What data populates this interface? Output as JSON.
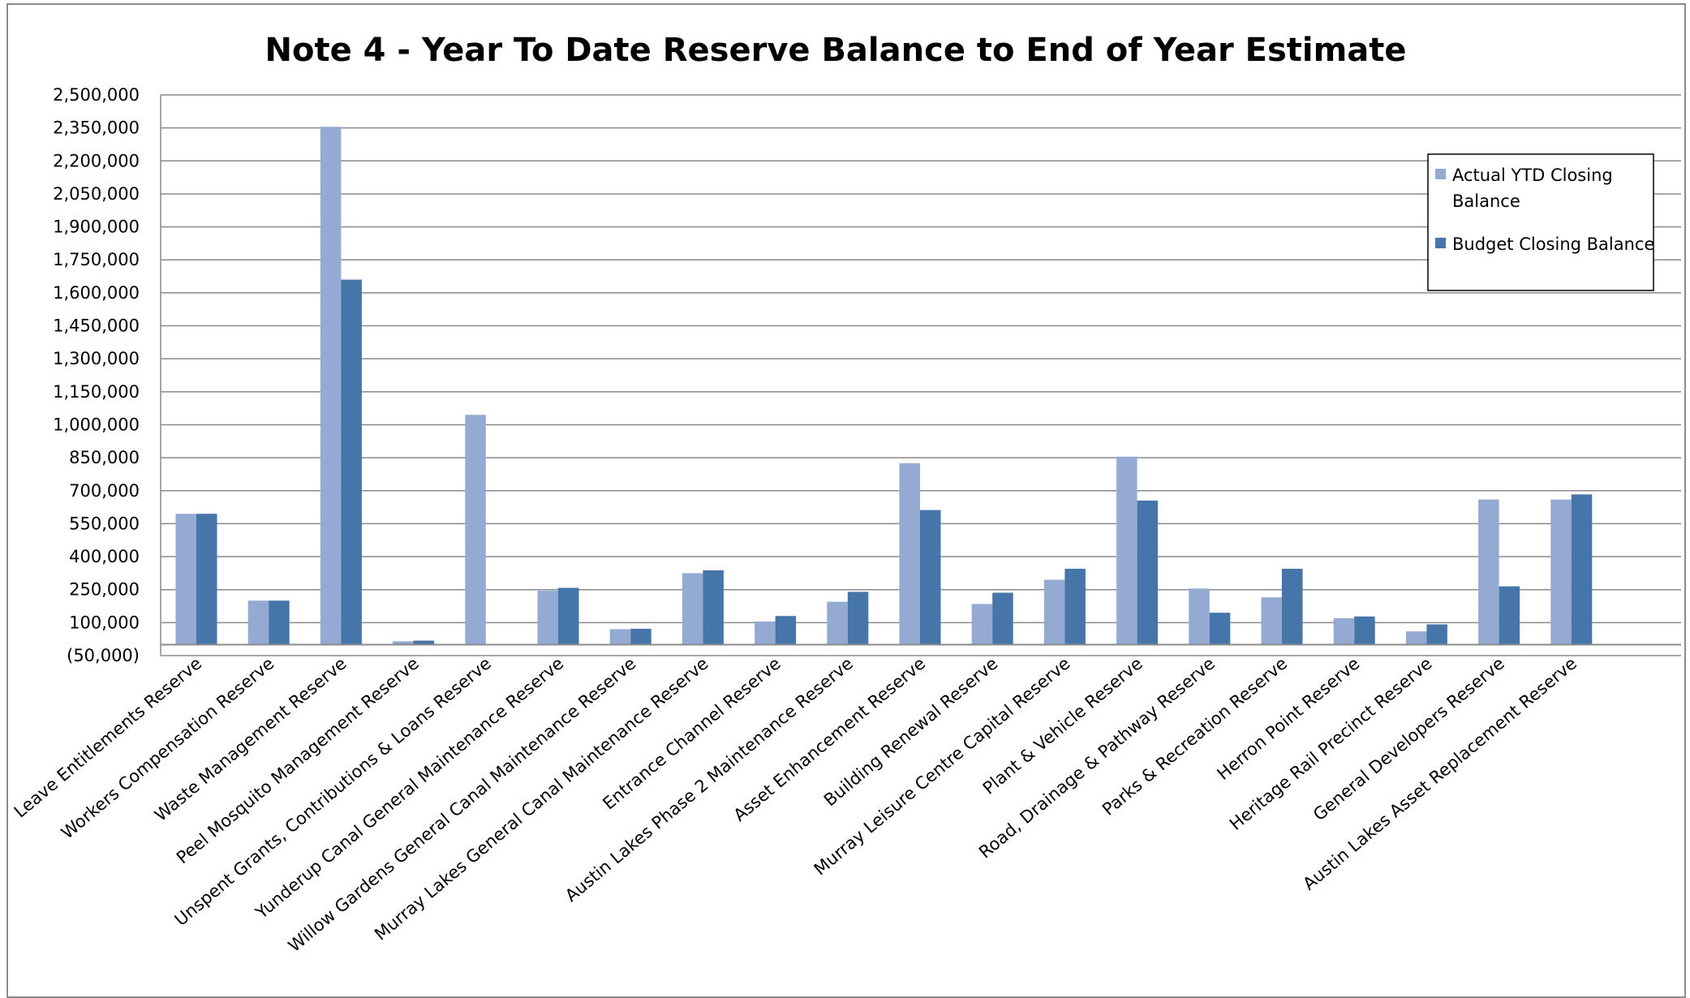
{
  "chart_data": {
    "type": "bar",
    "title": "Note 4 - Year To Date Reserve Balance to End of Year Estimate",
    "xlabel": "",
    "ylabel": "",
    "ylim": [
      -50000,
      2500000
    ],
    "y_ticks": [
      2500000,
      2350000,
      2200000,
      2050000,
      1900000,
      1750000,
      1600000,
      1450000,
      1300000,
      1150000,
      1000000,
      850000,
      700000,
      550000,
      400000,
      250000,
      100000,
      -50000
    ],
    "y_tick_labels": [
      "2,500,000",
      "2,350,000",
      "2,200,000",
      "2,050,000",
      "1,900,000",
      "1,750,000",
      "1,600,000",
      "1,450,000",
      "1,300,000",
      "1,150,000",
      "1,000,000",
      "850,000",
      "700,000",
      "550,000",
      "400,000",
      "250,000",
      "100,000",
      "(50,000)"
    ],
    "categories": [
      "Leave Entitlements Reserve",
      "Workers Compensation Reserve",
      "Waste Management Reserve",
      "Peel Mosquito Management Reserve",
      "Unspent Grants, Contributions & Loans Reserve",
      "Yunderup Canal General Maintenance Reserve",
      "Willow Gardens General Canal Maintenance Reserve",
      "Murray Lakes General Canal Maintenance Reserve",
      "Entrance Channel Reserve",
      "Austin Lakes Phase 2 Maintenance Reserve",
      "Asset Enhancement Reserve",
      "Building Renewal Reserve",
      "Murray Leisure Centre Capital Reserve",
      "Plant & Vehicle Reserve",
      "Road, Drainage & Pathway Reserve",
      "Parks & Recreation Reserve",
      "Herron Point Reserve",
      "Heritage Rail Precinct Reserve",
      "General Developers Reserve",
      "Austin Lakes Asset Replacement Reserve"
    ],
    "series": [
      {
        "name": "Actual YTD Closing Balance",
        "color": "#95aad3",
        "values": [
          595000,
          200000,
          2355000,
          15000,
          1045000,
          245000,
          70000,
          325000,
          105000,
          195000,
          825000,
          185000,
          295000,
          855000,
          255000,
          215000,
          120000,
          60000,
          660000,
          660000
        ]
      },
      {
        "name": "Budget Closing Balance",
        "color": "#4575a9",
        "values": [
          595000,
          200000,
          1660000,
          18000,
          0,
          258000,
          72000,
          338000,
          130000,
          240000,
          612000,
          236000,
          345000,
          655000,
          145000,
          345000,
          128000,
          92000,
          265000,
          683000
        ]
      }
    ],
    "grid": true,
    "legend_position": "top-right"
  }
}
